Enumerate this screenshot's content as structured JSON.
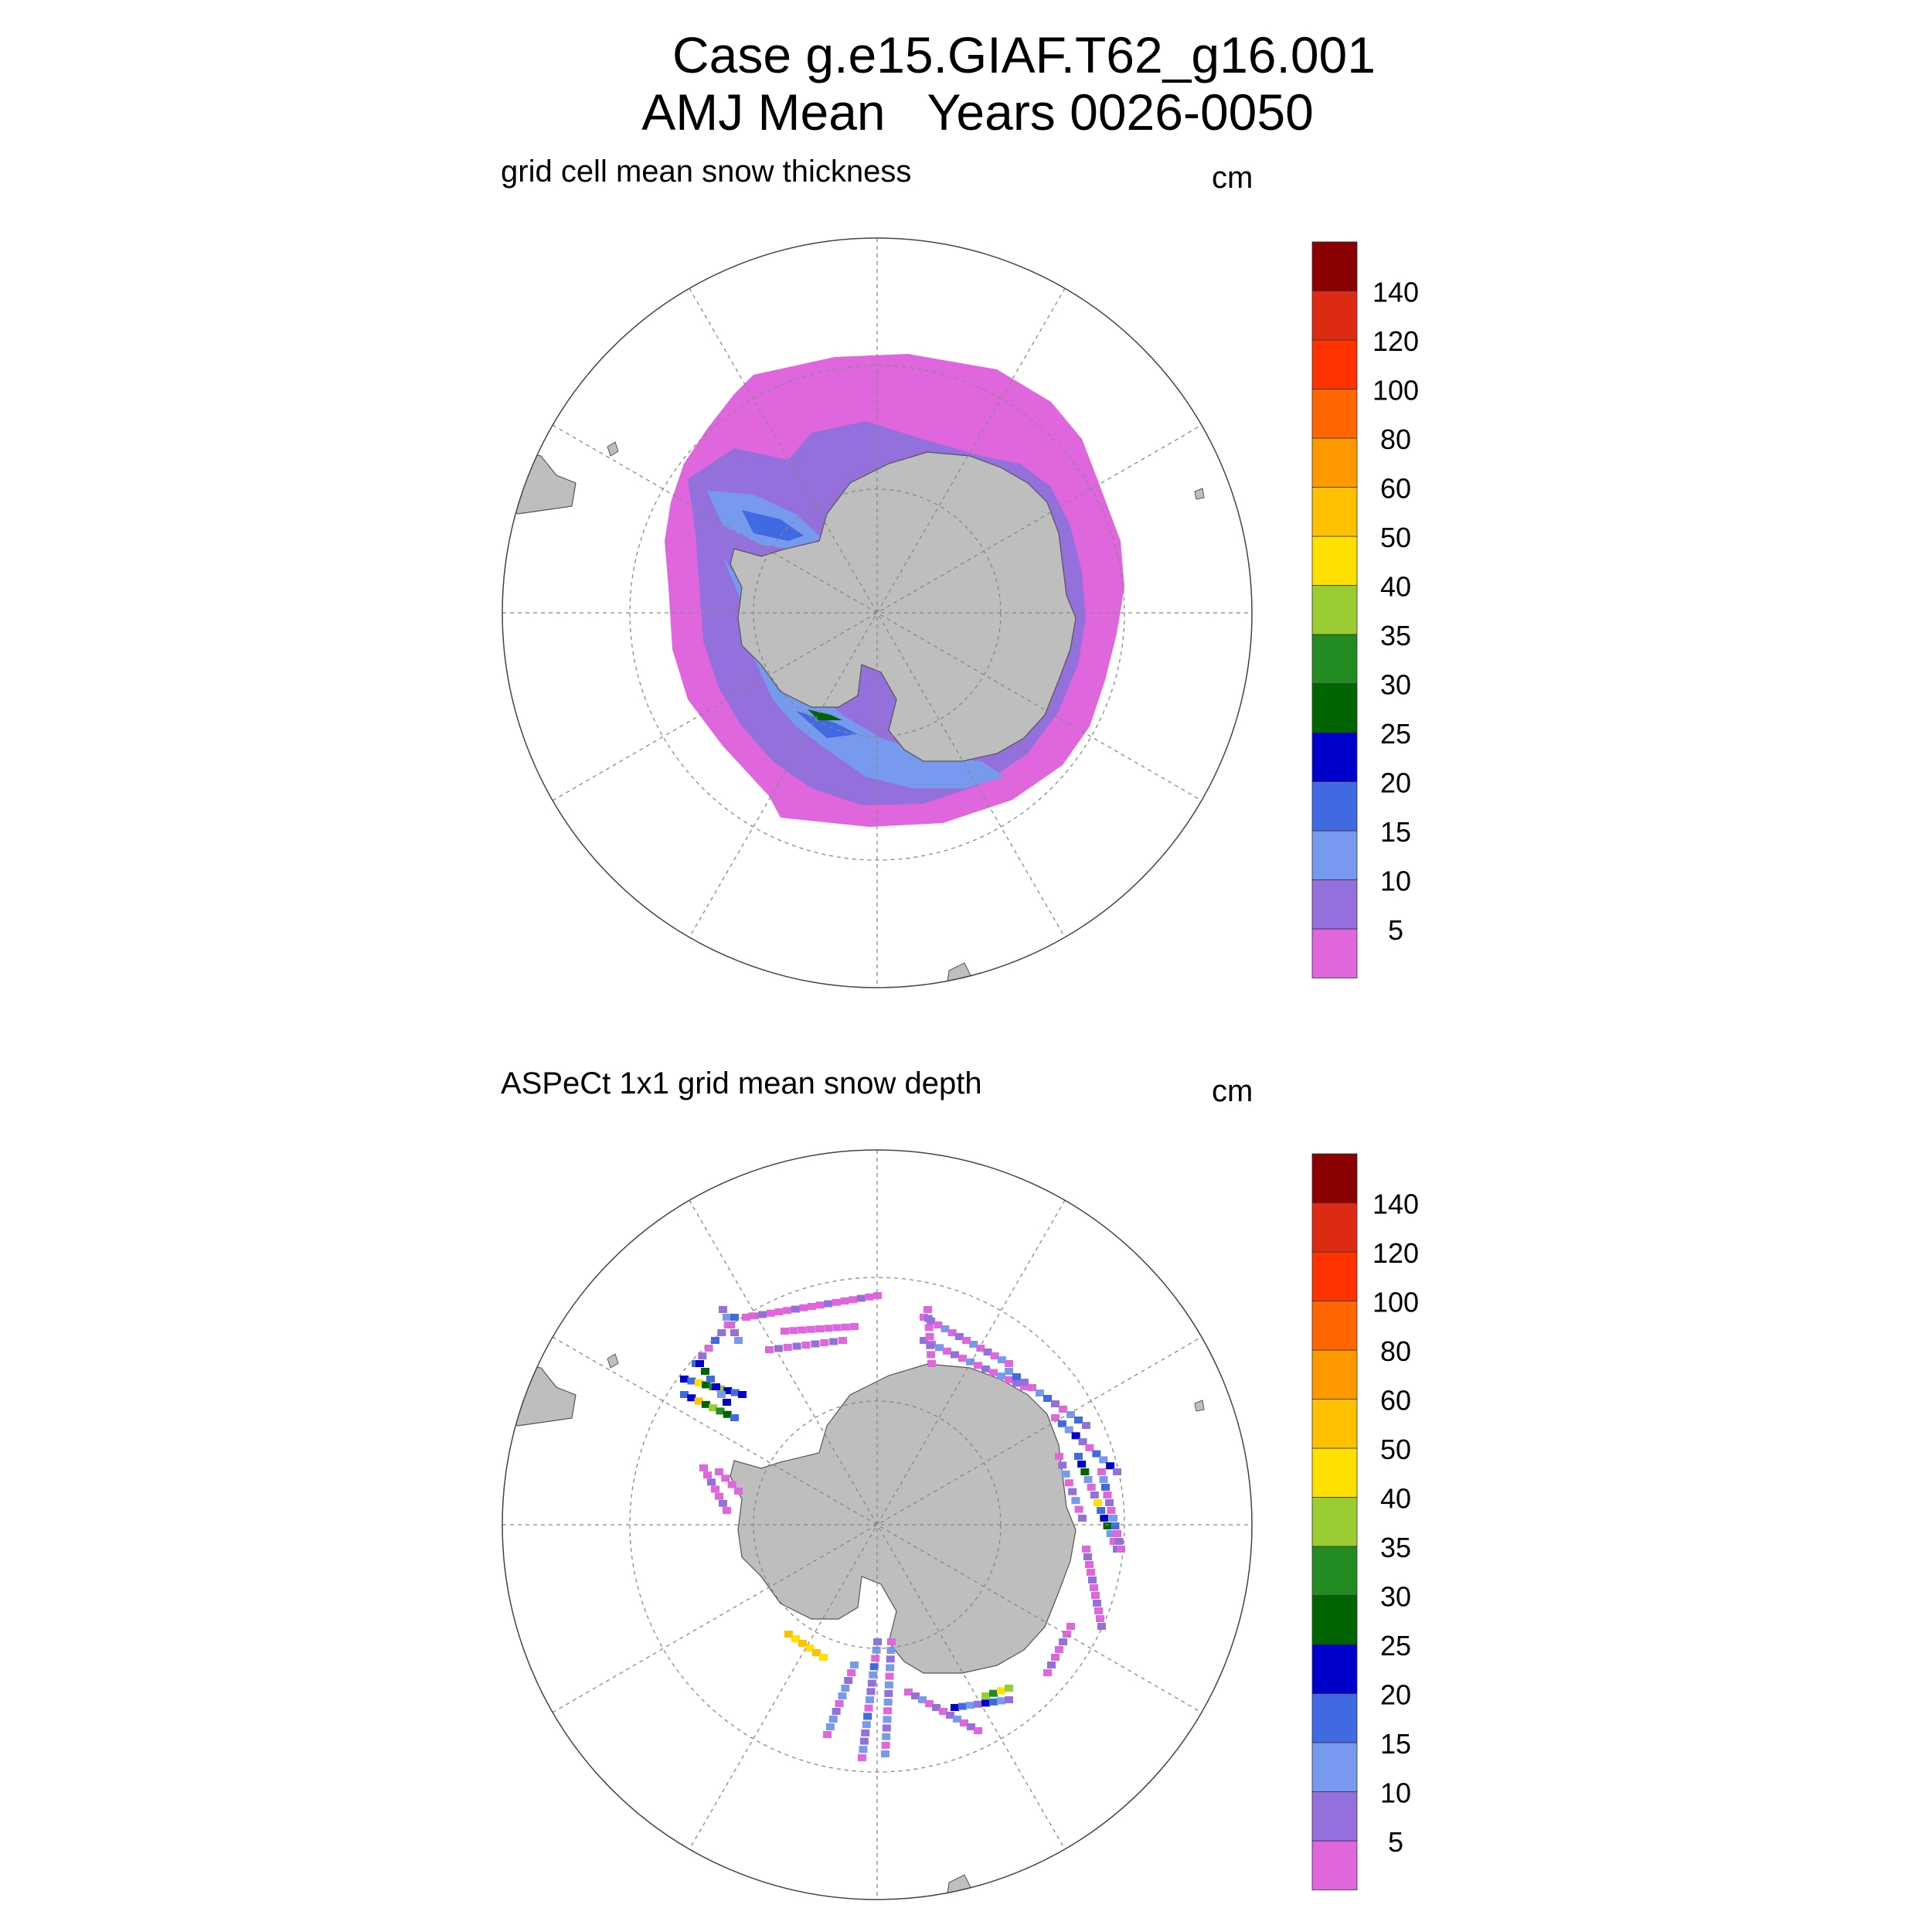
{
  "title": {
    "line1": "Case g.e15.GIAF.T62_g16.001",
    "line2": "AMJ Mean   Years 0026-0050"
  },
  "panels": [
    {
      "name": "model",
      "title": "grid cell mean snow thickness",
      "units": "cm"
    },
    {
      "name": "obs",
      "title": "ASPeCt 1x1 grid mean snow depth",
      "units": "cm"
    }
  ],
  "colorbar": {
    "labels": [
      "5",
      "10",
      "15",
      "20",
      "25",
      "30",
      "35",
      "40",
      "50",
      "60",
      "80",
      "100",
      "120",
      "140"
    ],
    "colors": [
      "#E066DD",
      "#9370DB",
      "#7799EE",
      "#4169E1",
      "#0000CD",
      "#006400",
      "#228B22",
      "#9ACD32",
      "#FFE000",
      "#FFC000",
      "#FF9900",
      "#FF6600",
      "#FF3300",
      "#DD2A12",
      "#8B0000"
    ]
  },
  "map": {
    "projection": "south-polar-stereographic",
    "land_color": "#BEBEBE",
    "grid_color": "#888888"
  }
}
